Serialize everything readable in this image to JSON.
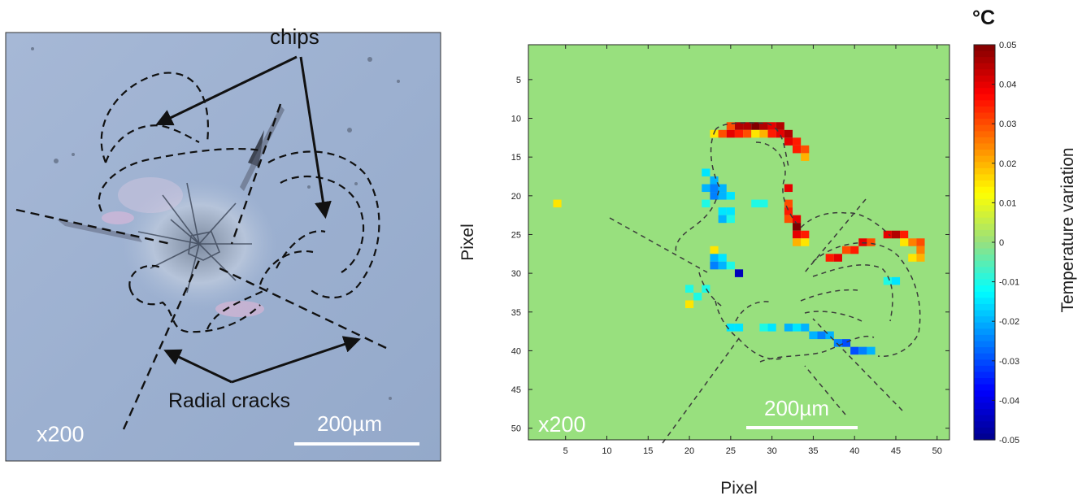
{
  "left_panel": {
    "annotation_chips": "chips",
    "annotation_radial_cracks": "Radial cracks",
    "magnification": "x200",
    "scale_bar_label": "200µm"
  },
  "right_panel": {
    "magnification": "x200",
    "scale_bar_label": "200µm",
    "xlabel": "Pixel",
    "ylabel": "Pixel",
    "colorbar_unit": "°C",
    "colorbar_label": "Temperature variation",
    "colorbar_ticks": [
      "0.05",
      "0.04",
      "0.03",
      "0.02",
      "0.01",
      "0",
      "-0.01",
      "-0.02",
      "-0.03",
      "-0.04",
      "-0.05"
    ],
    "x_ticks": [
      "5",
      "10",
      "15",
      "20",
      "25",
      "30",
      "35",
      "40",
      "45",
      "50"
    ],
    "y_ticks": [
      "5",
      "10",
      "15",
      "20",
      "25",
      "30",
      "35",
      "40",
      "45",
      "50"
    ]
  },
  "colors": {
    "photo_background": "#9fb2d2",
    "map_background": "#98e07e",
    "arrow": "#111111",
    "dashed_outline": "#333333"
  },
  "chart_data": {
    "type": "heatmap",
    "xlim": [
      0.5,
      51.5
    ],
    "ylim": [
      51.5,
      0.5
    ],
    "clim": [
      -0.05,
      0.05
    ],
    "xlabel": "Pixel",
    "ylabel": "Pixel",
    "colorbar_label": "Temperature variation",
    "colorbar_unit": "°C",
    "background_value": 0,
    "cells": [
      [
        4,
        21,
        0.015
      ],
      [
        25,
        11,
        0.03
      ],
      [
        26,
        11,
        0.045
      ],
      [
        27,
        11,
        0.045
      ],
      [
        28,
        11,
        0.05
      ],
      [
        29,
        11,
        0.045
      ],
      [
        30,
        11,
        0.04
      ],
      [
        31,
        11,
        0.045
      ],
      [
        23,
        12,
        0.015
      ],
      [
        24,
        12,
        0.03
      ],
      [
        25,
        12,
        0.04
      ],
      [
        26,
        12,
        0.035
      ],
      [
        27,
        12,
        0.03
      ],
      [
        28,
        12,
        0.015
      ],
      [
        29,
        12,
        0.02
      ],
      [
        30,
        12,
        0.035
      ],
      [
        31,
        12,
        0.04
      ],
      [
        32,
        12,
        0.045
      ],
      [
        32,
        13,
        0.04
      ],
      [
        33,
        13,
        0.035
      ],
      [
        33,
        14,
        0.035
      ],
      [
        34,
        14,
        0.03
      ],
      [
        34,
        15,
        0.02
      ],
      [
        22,
        17,
        -0.015
      ],
      [
        23,
        18,
        -0.02
      ],
      [
        22,
        19,
        -0.02
      ],
      [
        23,
        19,
        -0.025
      ],
      [
        24,
        19,
        -0.02
      ],
      [
        23,
        20,
        -0.025
      ],
      [
        24,
        20,
        -0.02
      ],
      [
        25,
        20,
        -0.015
      ],
      [
        22,
        21,
        -0.01
      ],
      [
        28,
        21,
        -0.01
      ],
      [
        29,
        21,
        -0.01
      ],
      [
        24,
        22,
        -0.015
      ],
      [
        25,
        22,
        -0.015
      ],
      [
        24,
        23,
        -0.02
      ],
      [
        25,
        23,
        -0.01
      ],
      [
        32,
        19,
        0.04
      ],
      [
        32,
        21,
        0.03
      ],
      [
        32,
        22,
        0.035
      ],
      [
        32,
        23,
        0.03
      ],
      [
        33,
        23,
        0.04
      ],
      [
        33,
        24,
        0.05
      ],
      [
        33,
        25,
        0.04
      ],
      [
        34,
        25,
        0.035
      ],
      [
        33,
        26,
        0.02
      ],
      [
        34,
        26,
        0.015
      ],
      [
        23,
        27,
        0.015
      ],
      [
        23,
        28,
        -0.02
      ],
      [
        24,
        28,
        -0.015
      ],
      [
        23,
        29,
        -0.025
      ],
      [
        24,
        29,
        -0.02
      ],
      [
        25,
        29,
        -0.01
      ],
      [
        26,
        30,
        -0.045
      ],
      [
        20,
        32,
        -0.01
      ],
      [
        22,
        32,
        -0.01
      ],
      [
        21,
        33,
        -0.01
      ],
      [
        20,
        34,
        0.015
      ],
      [
        37,
        28,
        0.035
      ],
      [
        38,
        28,
        0.04
      ],
      [
        39,
        27,
        0.03
      ],
      [
        40,
        27,
        0.035
      ],
      [
        41,
        26,
        0.04
      ],
      [
        42,
        26,
        0.03
      ],
      [
        44,
        25,
        0.04
      ],
      [
        45,
        25,
        0.045
      ],
      [
        46,
        25,
        0.035
      ],
      [
        47,
        26,
        0.025
      ],
      [
        46,
        26,
        0.015
      ],
      [
        48,
        26,
        0.03
      ],
      [
        48,
        27,
        0.025
      ],
      [
        48,
        28,
        0.02
      ],
      [
        47,
        28,
        0.015
      ],
      [
        44,
        31,
        -0.01
      ],
      [
        45,
        31,
        -0.015
      ],
      [
        25,
        37,
        -0.015
      ],
      [
        26,
        37,
        -0.015
      ],
      [
        29,
        37,
        -0.01
      ],
      [
        30,
        37,
        -0.015
      ],
      [
        32,
        37,
        -0.02
      ],
      [
        33,
        37,
        -0.015
      ],
      [
        34,
        37,
        -0.02
      ],
      [
        35,
        38,
        -0.02
      ],
      [
        36,
        38,
        -0.025
      ],
      [
        37,
        38,
        -0.02
      ],
      [
        38,
        39,
        -0.025
      ],
      [
        39,
        39,
        -0.03
      ],
      [
        40,
        40,
        -0.03
      ],
      [
        41,
        40,
        -0.025
      ],
      [
        42,
        40,
        -0.02
      ]
    ]
  }
}
